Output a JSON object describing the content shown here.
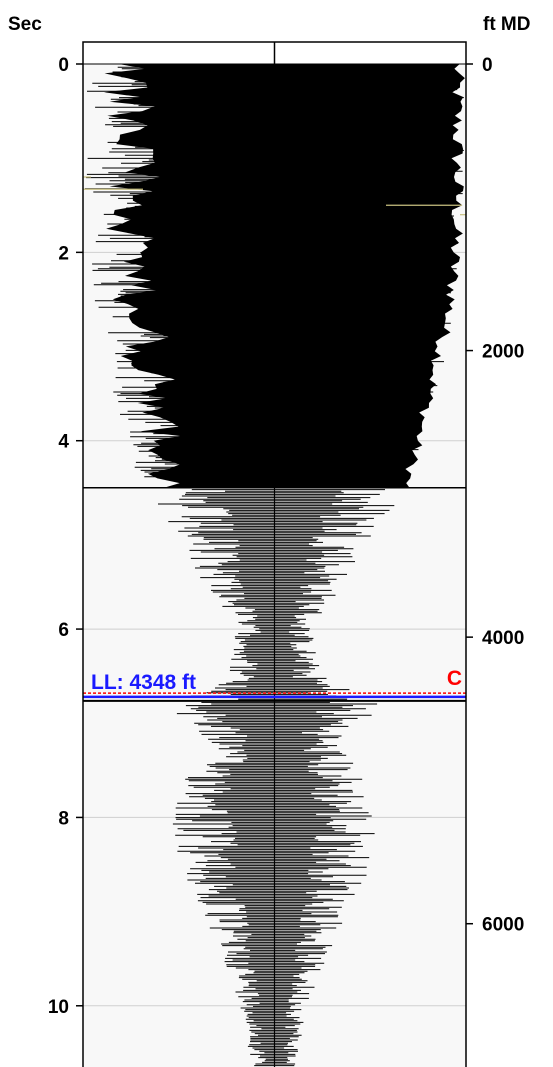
{
  "chart_data": {
    "type": "line",
    "left_axis": {
      "title": "Sec",
      "range": [
        0,
        10.65
      ],
      "ticks": [
        {
          "value": 0,
          "label": "0"
        },
        {
          "value": 2,
          "label": "2"
        },
        {
          "value": 4,
          "label": "4"
        },
        {
          "value": 6,
          "label": "6"
        },
        {
          "value": 8,
          "label": "8"
        },
        {
          "value": 10,
          "label": "10"
        }
      ]
    },
    "right_axis": {
      "title": "ft MD",
      "range": [
        0,
        7000
      ],
      "ticks": [
        {
          "value": 0,
          "label": "0"
        },
        {
          "value": 2000,
          "label": "2000"
        },
        {
          "value": 4000,
          "label": "4000"
        },
        {
          "value": 6000,
          "label": "6000"
        }
      ]
    },
    "grid": true,
    "trace": {
      "center_value": 0,
      "amplitude_range": [
        -1,
        1
      ],
      "envelope": [
        {
          "sec": 0.0,
          "half_width": 1.0
        },
        {
          "sec": 1.5,
          "half_width": 1.0
        },
        {
          "sec": 2.5,
          "half_width": 0.97
        },
        {
          "sec": 3.5,
          "half_width": 0.85
        },
        {
          "sec": 4.5,
          "half_width": 0.72
        },
        {
          "sec": 5.0,
          "half_width": 0.55
        },
        {
          "sec": 5.5,
          "half_width": 0.38
        },
        {
          "sec": 6.0,
          "half_width": 0.2
        },
        {
          "sec": 6.5,
          "half_width": 0.25
        },
        {
          "sec": 6.8,
          "half_width": 0.6
        },
        {
          "sec": 7.2,
          "half_width": 0.35
        },
        {
          "sec": 7.6,
          "half_width": 0.48
        },
        {
          "sec": 8.0,
          "half_width": 0.55
        },
        {
          "sec": 8.5,
          "half_width": 0.52
        },
        {
          "sec": 9.0,
          "half_width": 0.4
        },
        {
          "sec": 9.5,
          "half_width": 0.27
        },
        {
          "sec": 10.0,
          "half_width": 0.18
        },
        {
          "sec": 10.65,
          "half_width": 0.12
        }
      ],
      "dense_fill_until_sec": 4.5
    },
    "markers": [
      {
        "label": "LL: 4348 ft",
        "sec": 6.72,
        "depth_ft": 4348,
        "color": "#1a1aff"
      },
      {
        "label": "C",
        "sec": 6.68,
        "color": "#ff0000"
      }
    ]
  }
}
